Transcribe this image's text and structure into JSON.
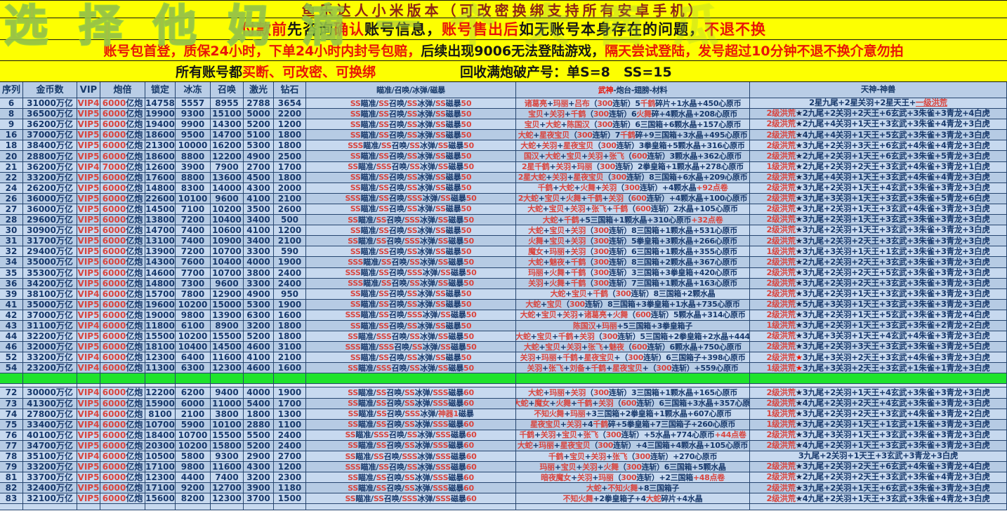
{
  "watermark": "选择他妈滴一个大西瓜",
  "banner": {
    "line1": "鱼乐达人小米版本（可改密换绑支持所有安卓手机）",
    "line2": [
      {
        "t": "付款前",
        "c": "seg-red"
      },
      {
        "t": "先咨询",
        "c": "seg-dark"
      },
      {
        "t": "确认",
        "c": "seg-red"
      },
      {
        "t": "账号信息，",
        "c": "seg-dark"
      },
      {
        "t": "账号售出后",
        "c": "seg-red"
      },
      {
        "t": "如无账号本身存在的问题，",
        "c": "seg-dark"
      },
      {
        "t": " 不退不换",
        "c": "seg-red"
      }
    ],
    "line3": [
      {
        "t": "账号包首登，质保24小时，下单24小时内封号包赔，",
        "c": "seg-red"
      },
      {
        "t": "后续出现9006无法登陆游戏，",
        "c": "seg-dark"
      },
      {
        "t": "隔天尝试登陆，",
        "c": "seg-red"
      },
      {
        "t": " 发号超过10分钟不退不换介意勿拍",
        "c": "seg-red"
      }
    ],
    "line4_left": [
      {
        "t": "所有账号都",
        "c": "seg-dark"
      },
      {
        "t": "买断、可改密、可换绑",
        "c": "seg-red"
      }
    ],
    "line4_right": "回收满炮破产号：单S=8　SS=15"
  },
  "table": {
    "headers": [
      "序列",
      "金币数",
      "VIP",
      "炮倍",
      "锁定",
      "冰冻",
      "召唤",
      "激光",
      "钻石",
      "瞄准/召唤/冰弹/磁暴",
      "武神-炮台-翅膀-材料",
      "天神-神兽"
    ],
    "red_star_rows": [
      "52",
      "54"
    ],
    "rows_top": [
      [
        "6",
        "31000万亿",
        "VIP4",
        "6000亿炮",
        "14758",
        "5557",
        "8955",
        "2788",
        "3654",
        "SS瞄准/SS召唤/SS冰弹/SS磁暴50",
        "诸葛亮+玛丽+吕布（300连斩）5千鹤碎片+1水晶+450心原币",
        "2星九尾+2星关羽+2星天王+一级洪荒"
      ],
      [
        "8",
        "36500万亿",
        "VIP5",
        "6000亿炮",
        "19900",
        "9300",
        "15100",
        "5000",
        "2200",
        "SS瞄准/SS召唤/SS冰弹/SS磁暴50",
        "宝贝+关羽+千鹤（300连斩）6火舞碎+4颗水晶+208心原币",
        "2级洪荒★2九尾+2关羽+2天王+6玄武+3朱雀+3青龙+4白虎"
      ],
      [
        "9",
        "36200万亿",
        "VIP5",
        "6000亿炮",
        "19400",
        "9900",
        "14300",
        "5200",
        "1200",
        "SS瞄准/SS召唤/SS冰弹/SS磁暴50",
        "宝贝+大蛇+陈国汉（300连斩）6三国箱+6颗水晶+157心原币",
        "2级洪荒★2九尾+4关羽+1天王+3玄武+3朱雀+4青龙+3白虎"
      ],
      [
        "16",
        "37000万亿",
        "VIP5",
        "6000亿炮",
        "18600",
        "9500",
        "14700",
        "5100",
        "1800",
        "SS瞄准/SS召唤/SS冰弹/SS磁暴50",
        "大蛇+星夜宝贝（300连斩）7千鹤碎+9三国箱+3水晶+495心原币",
        "2级洪荒★4九尾+4关羽+1天王+5玄武+3朱雀+3青龙+3白虎"
      ],
      [
        "18",
        "38400万亿",
        "VIP5",
        "6000亿炮",
        "21300",
        "10000",
        "16200",
        "5300",
        "1800",
        "SSS瞄准/SS召唤/SS冰弹/SS磁暴50",
        "大蛇+关羽+星夜宝贝（300连斩）3拳皇箱+5颗水晶+316心原币",
        "2级洪荒★3九尾+2关羽+3天王+6玄武+4朱雀+4青龙+3白虎"
      ],
      [
        "20",
        "28800万亿",
        "VIP5",
        "6000亿炮",
        "18600",
        "8800",
        "12200",
        "4900",
        "2500",
        "SS瞄准/SS召唤/SS冰弹/SS磁暴50",
        "国汉+大蛇+宝贝+关羽+张飞（600连斩）3颗水晶+362心原币",
        "2级洪荒★2九尾+2关羽+1天王+6玄武+3朱雀+5青龙+3白虎"
      ],
      [
        "21",
        "36200万亿",
        "VIP4",
        "7000亿炮",
        "12600",
        "3900",
        "7900",
        "2700",
        "1700",
        "SS瞄准/SSS召唤/SS冰弹/SS磁暴50",
        "2星千鹤+关羽+玛丽（300连斩）2拳皇箱+1颗水晶+278心原币",
        "1级洪荒★2九尾+2关羽+2天王+3玄武+4朱雀+3青龙+1白虎"
      ],
      [
        "22",
        "33200万亿",
        "VIP5",
        "6000亿炮",
        "17600",
        "8800",
        "13600",
        "4500",
        "1800",
        "SS瞄准/SS召唤/SS冰弹/SS磁暴50",
        "2星大蛇+关羽+星夜宝贝（300连斩）8三国箱+6水晶+209心原币",
        "2级洪荒★3九尾+4关羽+1天王+3玄武+4朱雀+4青龙+3白虎"
      ],
      [
        "24",
        "26200万亿",
        "VIP5",
        "6000亿炮",
        "14800",
        "8300",
        "14000",
        "4300",
        "2000",
        "SS瞄准/SS召唤/SS冰弹/SS磁暴50",
        "千鹤+大蛇+火舞+关羽（300连斩）+4颗水晶+92点卷",
        "2级洪荒★3九尾+2关羽+1天王+4玄武+3朱雀+3青龙+3白虎"
      ],
      [
        "26",
        "36000万亿",
        "VIP5",
        "6000亿炮",
        "22600",
        "10100",
        "9600",
        "4100",
        "2100",
        "SSS瞄准/SS召唤/SSS冰弹/SS磁暴50",
        "2大蛇+宝贝+火舞+千鹤+关羽（600连斩）+4颗水晶+100心原币",
        "2级洪荒★3九尾+3关羽+1天王+3玄武+3朱雀+5青龙+6白虎"
      ],
      [
        "27",
        "36000万亿",
        "VIP5",
        "6000亿炮",
        "14500",
        "7100",
        "10200",
        "3500",
        "2600",
        "SS瞄准/SS召唤/SS冰弹/SS磁暴50",
        "大蛇+宝贝+关羽+张飞+千鹤（600连斩）2水晶+105心原币",
        "2级洪荒★3九尾+2关羽+1天王+3玄武+4朱雀+3青龙+3白虎"
      ],
      [
        "28",
        "29600万亿",
        "VIP5",
        "6000亿炮",
        "13800",
        "7200",
        "10400",
        "3400",
        "500",
        "SS瞄准/SS召唤/SSS冰弹/SS磁暴50",
        "大蛇+千鹤+5三国箱+1颗水晶+310心原币+32点卷",
        "2级洪荒★3九尾+2关羽+1天王+3玄武+3朱雀+3青龙+3白虎"
      ],
      [
        "30",
        "30900万亿",
        "VIP5",
        "6000亿炮",
        "14700",
        "7400",
        "10600",
        "4100",
        "1200",
        "SS瞄准/SS召唤/SS冰弹/SS磁暴50",
        "大蛇+宝贝+关羽（300连斩）8三国箱+1颗水晶+531心原币",
        "2级洪荒★3九尾+2关羽+1天王+3玄武+3朱雀+3青龙+3白虎"
      ],
      [
        "31",
        "31700万亿",
        "VIP5",
        "6000亿炮",
        "13100",
        "7400",
        "10900",
        "3400",
        "2100",
        "SS瞄准/SS召唤/SSS冰弹/SS磁暴50",
        "火舞+宝贝+关羽（300连斩）5拳皇箱+3颗水晶+266心原币",
        "2级洪荒★3九尾+2关羽+2天王+3玄武+3朱雀+3青龙+3白虎"
      ],
      [
        "32",
        "29400万亿",
        "VIP5",
        "6000亿炮",
        "13900",
        "7200",
        "10700",
        "3300",
        "590",
        "SS瞄准/SS召唤/SS冰弹/SS磁暴50",
        "魔女+玛丽+关羽（300连斩）6三国箱+1颗水晶+355心原币",
        "1级洪荒★3九尾+3关羽+1天王+1玄武+3朱雀+3青龙+3白虎"
      ],
      [
        "34",
        "35000万亿",
        "VIP5",
        "6000亿炮",
        "14300",
        "7600",
        "10400",
        "4000",
        "1900",
        "SSS瞄准/SS召唤/SS冰弹/SS磁暴50",
        "大蛇+魅夜+千鹤（300连斩）8三国箱+2颗水晶+367心原币",
        "2级洪荒★2九尾+2关羽+2天王+3玄武+3朱雀+3青龙+3白虎"
      ],
      [
        "35",
        "35300万亿",
        "VIP5",
        "6000亿炮",
        "14600",
        "7700",
        "10700",
        "3800",
        "2400",
        "SSS瞄准/SS召唤/SSS冰弹/SS磁暴50",
        "玛丽+火舞+千鹤（300连斩）3三国箱+3拳皇箱+420心原币",
        "2级洪荒★3九尾+2关羽+2天王+5玄武+3朱雀+3青龙+3白虎"
      ],
      [
        "36",
        "34200万亿",
        "VIP5",
        "6000亿炮",
        "14800",
        "7300",
        "9600",
        "3300",
        "2400",
        "SSS瞄准/SS召唤/SS冰弹/SS磁暴50",
        "关羽+火舞+千鹤（300连斩）7三国箱+1颗水晶+163心原币",
        "2级洪荒★3九尾+2关羽+2天王+3玄武+3朱雀+3青龙+3白虎"
      ],
      [
        "39",
        "38100万亿",
        "VIP4",
        "6000亿炮",
        "15700",
        "7800",
        "12900",
        "4900",
        "950",
        "SS瞄准/SS召唤/SS冰弹/SS磁暴50",
        "大蛇+宝贝+千鹤（300连斩）8三国箱+2颗水晶",
        "2级洪荒★3九尾+2关羽+1天王+3玄武+3朱雀+3青龙+3白虎"
      ],
      [
        "41",
        "35000万亿",
        "VIP5",
        "6000亿炮",
        "19600",
        "10200",
        "15000",
        "5300",
        "1900",
        "SS瞄准/SS召唤/SS冰弹/SS磁暴50",
        "大蛇+宝贝（300连斩）8三国箱+3拳皇箱+1水晶+735心原币",
        "2级洪荒★5九尾+3关羽+1天王+3玄武+3朱雀+3青龙+3白虎"
      ],
      [
        "42",
        "37000万亿",
        "VIP5",
        "6000亿炮",
        "19000",
        "9800",
        "13900",
        "6300",
        "1600",
        "SSS瞄准/SS召唤/SSS冰弹/SS磁暴50",
        "大蛇+宝贝+关羽+诸葛亮+火舞（600连斩）5颗水晶+314心原币",
        "2级洪荒★3九尾+2关羽+1天王+5玄武+3朱雀+3青龙+4白虎"
      ],
      [
        "43",
        "31100万亿",
        "VIP4",
        "6000亿炮",
        "11800",
        "6100",
        "8900",
        "3200",
        "1800",
        "SS瞄准/SS召唤/SS冰弹/SS磁暴50",
        "陈国汉+玛丽+5三国箱+3拳皇箱子",
        "1级洪荒★3九尾+2关羽+1天王+3玄武+3朱雀+2青龙+2白虎"
      ],
      [
        "44",
        "32200万亿",
        "VIP5",
        "6000亿炮",
        "15500",
        "10200",
        "15500",
        "5200",
        "1800",
        "SS瞄准/SSS召唤/SS冰弹/SS磁暴50",
        "大蛇+宝贝+千鹤+关羽（300连斩）5三国箱+2拳皇箱+2水晶+444",
        "2级洪荒★3九尾+3关羽+1天王+4玄武+4朱雀+3青龙+3白虎"
      ],
      [
        "46",
        "32000万亿",
        "VIP5",
        "6000亿炮",
        "18100",
        "10400",
        "14500",
        "4600",
        "3100",
        "SSS瞄准/SSS召唤/SS冰弹/SS磁暴50",
        "大蛇+宝贝+关羽+张飞+魅夜（600连斩）6颗水晶+750心原币",
        "2级洪荒★3九尾+2关羽+3天王+3玄武+3朱雀+3青龙+5白虎"
      ],
      [
        "52",
        "33200万亿",
        "VIP4",
        "6000亿炮",
        "12300",
        "6400",
        "11600",
        "4100",
        "2100",
        "SS瞄准/SS召唤/SS冰弹/SS磁暴50",
        "关羽+玛丽+千鹤+星夜宝贝+（300连斩）6三国箱子+398心原币",
        "2级洪荒★3九尾+3关羽+2天王+3玄武+4朱雀+3青龙+3白虎"
      ],
      [
        "54",
        "23200万亿",
        "VIP4",
        "6000亿炮",
        "11300",
        "6300",
        "12300",
        "4600",
        "1600",
        "SS瞄准/SSS召唤/SS冰弹/SS磁暴50",
        "关羽+张飞+刘备+千鹤+星夜宝贝+（300连斩）+559心原币",
        "1级洪荒★3九尾+3关羽+2天王+3玄武+1朱雀+1青龙+3白虎"
      ]
    ],
    "rows_bottom": [
      [
        "72",
        "30000万亿",
        "VIP4",
        "6000亿炮",
        "12200",
        "6200",
        "9400",
        "4000",
        "1900",
        "SS瞄准/SS召唤/SS冰弹/SSS磁暴60",
        "大蛇+玛丽+关羽（300连斩）3三国箱+1颗水晶+165心原币",
        "2级洪荒★3九尾+2关羽+1天王+4玄武+3朱雀+3青龙+3白虎"
      ],
      [
        "73",
        "41300万亿",
        "VIP5",
        "6000亿炮",
        "15900",
        "6000",
        "11000",
        "5400",
        "1700",
        "SS瞄准/SS召唤/SS冰弹/SSS磁暴60",
        "2大蛇+魔女+火舞+千鹤+关羽（600连斩）6三国箱+3水晶+357心原币",
        "2级洪荒★4九尾+2关羽+2天王+4玄武+3朱雀+3青龙+3白虎"
      ],
      [
        "74",
        "27800万亿",
        "VIP4",
        "6000亿炮",
        "8100",
        "2100",
        "3800",
        "1800",
        "1300",
        "SS瞄准/SS召唤/SSS冰弹/神器1磁暴",
        "不知火舞+玛丽+3三国箱+2拳皇箱+1颗水晶+607心原币",
        "1级洪荒★3九尾+2关羽+2天王+3玄武+4朱雀+3青龙+2白虎"
      ],
      [
        "75",
        "33400万亿",
        "VIP4",
        "6000亿炮",
        "10700",
        "5900",
        "10100",
        "2880",
        "1100",
        "SS瞄准/SS召唤/SS冰弹/SSS磁暴60",
        "星夜宝贝+关羽+4千鹤碎+5拳皇箱+7三国箱子+260心原币",
        "1级洪荒★3九尾+2关羽+1天王+1玄武+1朱雀+3青龙+3白虎"
      ],
      [
        "76",
        "40100万亿",
        "VIP5",
        "6000亿炮",
        "18400",
        "10700",
        "15500",
        "5500",
        "2400",
        "SS瞄准/SSS召唤/SS冰弹/SSS磁暴60",
        "千鹤+关羽+宝贝+张飞（300连斩）+5水晶+774心原币+44点卷",
        "2级洪荒★3九尾+3关羽+1天王+3玄武+3朱雀+3青龙+3白虎"
      ],
      [
        "77",
        "34700万亿",
        "VIP5",
        "6000亿炮",
        "20300",
        "10200",
        "15800",
        "5200",
        "2400",
        "SS瞄准/SS召唤/SS冰弹/SSS磁暴60",
        "大蛇+玛丽+星夜宝贝（300连斩）+4三国箱+4颗水晶+105心原币",
        "2级洪荒★4九尾+2关羽+1天王+3玄武+3朱雀+3青龙+3白虎"
      ],
      [
        "78",
        "35100万亿",
        "VIP4",
        "6000亿炮",
        "10500",
        "5800",
        "9300",
        "2900",
        "2700",
        "SS瞄准/SS召唤/SSS冰弹/SSS磁暴60",
        "千鹤+宝贝+关羽+张飞（300连斩）+270心原币",
        "3九尾+2关羽+1天王+3玄武+3青龙+3白虎"
      ],
      [
        "79",
        "33200万亿",
        "VIP5",
        "6000亿炮",
        "17100",
        "9800",
        "11600",
        "4300",
        "1200",
        "SSS瞄准/SS召唤/SS冰弹/SSS磁暴60",
        "玛丽+宝贝+关羽+火舞（300连斩）6三国箱+5颗水晶",
        "2级洪荒★3九尾+2关羽+2天王+6玄武+4朱雀+3青龙+4白虎"
      ],
      [
        "81",
        "33700万亿",
        "VIP5",
        "6000亿炮",
        "12300",
        "4400",
        "7400",
        "3200",
        "2300",
        "SS瞄准/SS召唤/SS冰弹/SSS磁暴60",
        "暗夜魔女+关羽+玛丽（300连斩）+2三国箱+48点卷",
        "2级洪荒★2九尾+2关羽+2天王+3玄武+3朱雀+4青龙+3白虎"
      ],
      [
        "82",
        "32400万亿",
        "VIP5",
        "6000亿炮",
        "17100",
        "9200",
        "12700",
        "3900",
        "1180",
        "SS瞄准/SS召唤/SS冰弹/SSS磁暴60",
        "大蛇+不知火舞+8三国箱子",
        "2级洪荒★3九尾+2关羽+1天王+6玄武+3朱雀+3青龙+3白虎"
      ],
      [
        "83",
        "32100万亿",
        "VIP5",
        "6000亿炮",
        "15600",
        "8200",
        "12300",
        "3700",
        "1500",
        "SS瞄准/SS召唤/SSS冰弹/SSS磁暴60",
        "不知火舞+2拳皇箱子+4大蛇碎片+4水晶",
        "2级洪荒★4九尾+2关羽+1天王+3玄武+3朱雀+4青龙+3白虎"
      ]
    ]
  }
}
